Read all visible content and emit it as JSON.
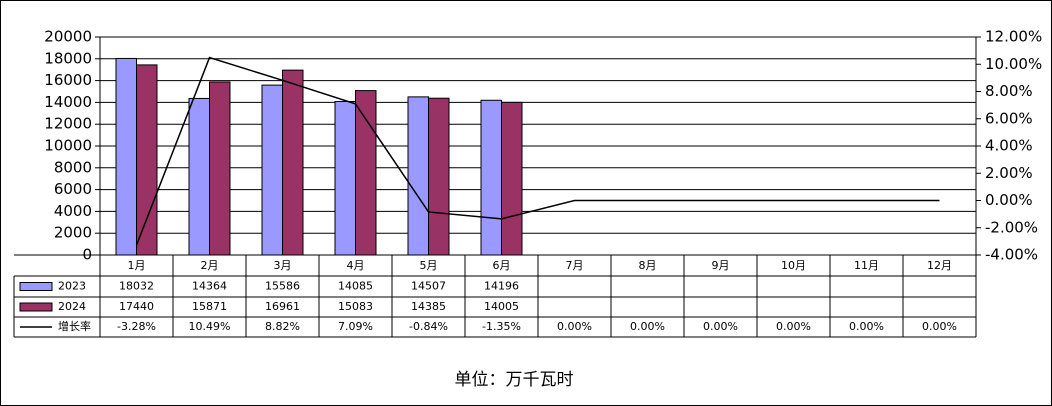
{
  "chart_data": {
    "type": "bar",
    "categories": [
      "1月",
      "2月",
      "3月",
      "4月",
      "5月",
      "6月",
      "7月",
      "8月",
      "9月",
      "10月",
      "11月",
      "12月"
    ],
    "series": [
      {
        "name": "2023",
        "color": "#9999ff",
        "values": [
          18032,
          14364,
          15586,
          14085,
          14507,
          14196,
          null,
          null,
          null,
          null,
          null,
          null
        ]
      },
      {
        "name": "2024",
        "color": "#993366",
        "values": [
          17440,
          15871,
          16961,
          15083,
          14385,
          14005,
          null,
          null,
          null,
          null,
          null,
          null
        ]
      },
      {
        "name": "增长率",
        "type": "line",
        "axis": "y2",
        "color": "#000000",
        "values": [
          -3.28,
          10.49,
          8.82,
          7.09,
          -0.84,
          -1.35,
          0,
          0,
          0,
          0,
          0,
          0
        ],
        "value_labels": [
          "-3.28%",
          "10.49%",
          "8.82%",
          "7.09%",
          "-0.84%",
          "-1.35%",
          "0.00%",
          "0.00%",
          "0.00%",
          "0.00%",
          "0.00%",
          "0.00%"
        ]
      }
    ],
    "ylim": [
      0,
      20000
    ],
    "yticks": [
      0,
      2000,
      4000,
      6000,
      8000,
      10000,
      12000,
      14000,
      16000,
      18000,
      20000
    ],
    "y2lim": [
      -4,
      12
    ],
    "y2ticks": [
      {
        "value": -4,
        "label": "-4.00%"
      },
      {
        "value": -2,
        "label": "-2.00%"
      },
      {
        "value": 0,
        "label": "0.00%"
      },
      {
        "value": 2,
        "label": "2.00%"
      },
      {
        "value": 4,
        "label": "4.00%"
      },
      {
        "value": 6,
        "label": "6.00%"
      },
      {
        "value": 8,
        "label": "8.00%"
      },
      {
        "value": 10,
        "label": "10.00%"
      },
      {
        "value": 12,
        "label": "12.00%"
      }
    ],
    "grid": true,
    "note": "单位：万千瓦时"
  }
}
